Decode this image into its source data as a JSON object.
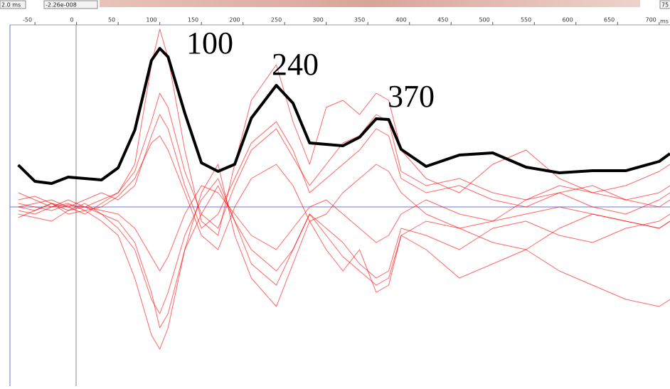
{
  "controls": {
    "start_field": "2.0 ms",
    "cursor_field": "-2.26e-008",
    "end_field": "75"
  },
  "chart_data": {
    "type": "line",
    "xlabel": "ms",
    "annotations": [
      "100",
      "240",
      "370"
    ],
    "x": [
      -70,
      -50,
      -30,
      -10,
      10,
      30,
      50,
      70,
      90,
      100,
      110,
      130,
      150,
      170,
      190,
      210,
      240,
      260,
      280,
      300,
      320,
      340,
      360,
      375,
      390,
      420,
      460,
      500,
      540,
      580,
      620,
      660,
      700,
      713
    ],
    "xlim": [
      -80,
      713
    ],
    "xticks": [
      -50,
      0,
      50,
      100,
      150,
      200,
      250,
      300,
      350,
      400,
      450,
      500,
      550,
      600,
      650,
      700
    ],
    "ylim": [
      -252,
      256
    ],
    "series": [
      {
        "color": "#ff0000",
        "values": [
          5,
          0,
          -5,
          3,
          0,
          10,
          20,
          60,
          200,
          250,
          210,
          80,
          -20,
          -40,
          60,
          150,
          200,
          120,
          60,
          140,
          150,
          130,
          160,
          150,
          80,
          40,
          20,
          60,
          80,
          40,
          20,
          30,
          50,
          60
        ]
      },
      {
        "color": "#ff0000",
        "values": [
          0,
          -5,
          5,
          -10,
          -5,
          -20,
          -40,
          -100,
          -180,
          -200,
          -170,
          -60,
          20,
          60,
          -40,
          -100,
          -140,
          -80,
          -20,
          -60,
          -90,
          -60,
          -120,
          -110,
          -40,
          -20,
          -30,
          -50,
          -60,
          -30,
          -10,
          -20,
          -30,
          -20
        ]
      },
      {
        "color": "#ff0000",
        "values": [
          10,
          15,
          5,
          0,
          10,
          20,
          10,
          30,
          100,
          130,
          110,
          30,
          -30,
          -10,
          40,
          90,
          120,
          80,
          20,
          40,
          60,
          80,
          110,
          100,
          40,
          20,
          30,
          10,
          0,
          20,
          30,
          10,
          20,
          30
        ]
      },
      {
        "color": "#ff0000",
        "values": [
          -10,
          -15,
          -20,
          -5,
          5,
          -10,
          -30,
          -60,
          -130,
          -150,
          -120,
          -40,
          10,
          40,
          -20,
          -60,
          -90,
          -60,
          -10,
          -30,
          -50,
          -80,
          -100,
          -90,
          -30,
          -40,
          -60,
          -30,
          -20,
          -40,
          -50,
          -30,
          -20,
          -10
        ]
      },
      {
        "color": "#ff0000",
        "values": [
          20,
          10,
          0,
          5,
          -5,
          0,
          15,
          40,
          90,
          100,
          80,
          20,
          -40,
          -60,
          0,
          40,
          60,
          30,
          -20,
          -10,
          20,
          40,
          60,
          50,
          20,
          -10,
          -30,
          -20,
          10,
          20,
          0,
          -10,
          10,
          20
        ]
      },
      {
        "color": "#ff0000",
        "values": [
          -5,
          -10,
          0,
          10,
          0,
          -5,
          -10,
          -30,
          -70,
          -90,
          -70,
          -10,
          30,
          20,
          -10,
          -40,
          -60,
          -30,
          0,
          10,
          -10,
          -30,
          -50,
          -40,
          -10,
          10,
          -10,
          -20,
          -10,
          0,
          -10,
          -20,
          -30,
          -20
        ]
      },
      {
        "color": "#ff0000",
        "values": [
          0,
          5,
          10,
          0,
          -10,
          5,
          20,
          50,
          120,
          160,
          140,
          50,
          -10,
          -30,
          30,
          80,
          110,
          70,
          30,
          60,
          90,
          100,
          130,
          120,
          50,
          30,
          40,
          20,
          10,
          30,
          20,
          10,
          0,
          10
        ]
      },
      {
        "color": "#ff0000",
        "values": [
          -15,
          -5,
          5,
          -5,
          0,
          -10,
          -20,
          -50,
          -120,
          -170,
          -150,
          -60,
          -10,
          30,
          -20,
          -80,
          -110,
          -60,
          -10,
          -40,
          -70,
          -90,
          -110,
          -100,
          -40,
          -60,
          -100,
          -80,
          -60,
          -90,
          -110,
          -130,
          -140,
          -130
        ]
      },
      {
        "color": "#000000",
        "values": [
          59,
          36,
          33,
          42,
          40,
          38,
          55,
          108,
          206,
          223,
          211,
          132,
          62,
          50,
          60,
          125,
          171,
          146,
          90,
          88,
          86,
          98,
          124,
          123,
          81,
          57,
          73,
          76,
          56,
          48,
          51,
          51,
          64,
          75
        ]
      }
    ]
  }
}
